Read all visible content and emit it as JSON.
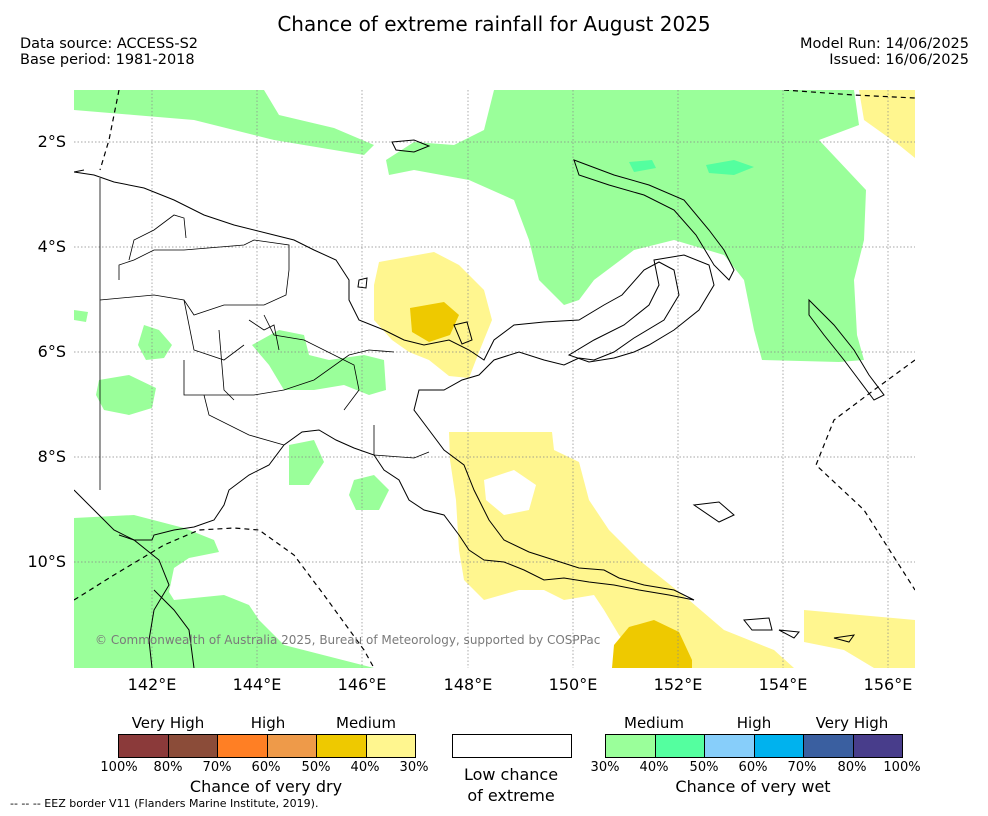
{
  "title": "Chance of extreme rainfall for August 2025",
  "meta": {
    "data_source": "Data source: ACCESS-S2",
    "base_period": "Base period: 1981-2018",
    "model_run": "Model Run: 14/06/2025",
    "issued": "Issued: 16/06/2025"
  },
  "map": {
    "lat_ticks": [
      "2°S",
      "4°S",
      "6°S",
      "8°S",
      "10°S"
    ],
    "lon_ticks": [
      "142°E",
      "144°E",
      "146°E",
      "148°E",
      "150°E",
      "152°E",
      "154°E",
      "156°E"
    ],
    "copyright": "© Commonwealth of Australia 2025, Bureau of Meteorology, supported by COSPPac",
    "colors": {
      "dry_30": "#fff68f",
      "dry_50": "#eec900",
      "wet_30": "#9aff9a",
      "wet_40": "#54ff9f",
      "coast": "#000000"
    }
  },
  "legend": {
    "dry": {
      "headers": [
        "Very High",
        "High",
        "Medium"
      ],
      "colors": [
        "#8b3a3a",
        "#8b4c39",
        "#ff7f24",
        "#ee9a49",
        "#eec900",
        "#fff68f"
      ],
      "ticks": [
        "100%",
        "80%",
        "70%",
        "60%",
        "50%",
        "40%",
        "30%"
      ],
      "caption": "Chance of very dry"
    },
    "low": {
      "caption_line1": "Low chance",
      "caption_line2": "of extreme"
    },
    "wet": {
      "headers": [
        "Medium",
        "High",
        "Very High"
      ],
      "colors": [
        "#9aff9a",
        "#54ff9f",
        "#87cefa",
        "#00b2ee",
        "#3a5fa0",
        "#483d8b"
      ],
      "ticks": [
        "30%",
        "40%",
        "50%",
        "60%",
        "70%",
        "80%",
        "100%"
      ],
      "caption": "Chance of very wet"
    },
    "eez_note": "-- -- -- EEZ border V11 (Flanders Marine Institute, 2019)."
  }
}
